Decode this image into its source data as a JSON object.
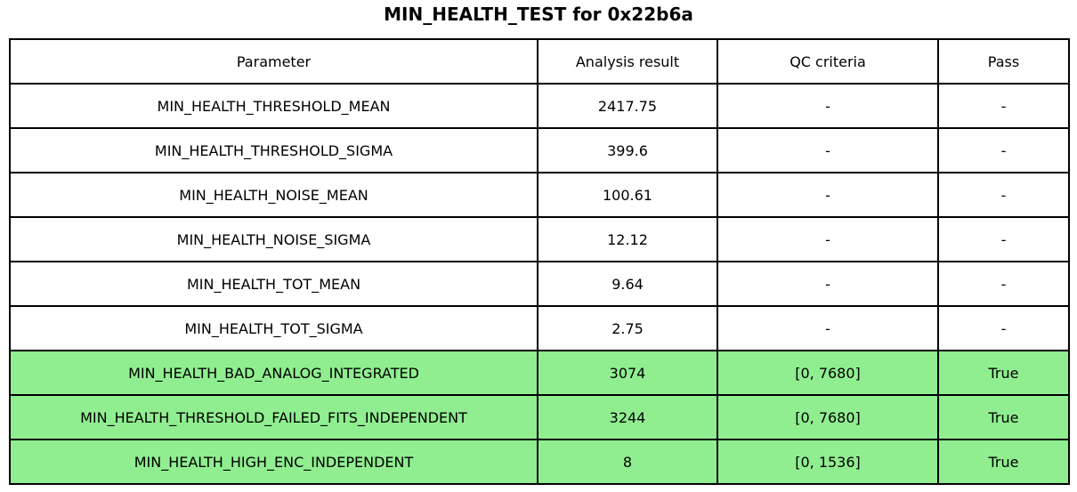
{
  "title": "MIN_HEALTH_TEST for 0x22b6a",
  "colors": {
    "highlight_green": "#90ee90",
    "border": "#000000",
    "background": "#ffffff",
    "text": "#000000"
  },
  "table": {
    "columns": [
      "Parameter",
      "Analysis result",
      "QC criteria",
      "Pass"
    ],
    "rows": [
      {
        "parameter": "MIN_HEALTH_THRESHOLD_MEAN",
        "result": "2417.75",
        "qc": "-",
        "pass": "-",
        "highlight": false
      },
      {
        "parameter": "MIN_HEALTH_THRESHOLD_SIGMA",
        "result": "399.6",
        "qc": "-",
        "pass": "-",
        "highlight": false
      },
      {
        "parameter": "MIN_HEALTH_NOISE_MEAN",
        "result": "100.61",
        "qc": "-",
        "pass": "-",
        "highlight": false
      },
      {
        "parameter": "MIN_HEALTH_NOISE_SIGMA",
        "result": "12.12",
        "qc": "-",
        "pass": "-",
        "highlight": false
      },
      {
        "parameter": "MIN_HEALTH_TOT_MEAN",
        "result": "9.64",
        "qc": "-",
        "pass": "-",
        "highlight": false
      },
      {
        "parameter": "MIN_HEALTH_TOT_SIGMA",
        "result": "2.75",
        "qc": "-",
        "pass": "-",
        "highlight": false
      },
      {
        "parameter": "MIN_HEALTH_BAD_ANALOG_INTEGRATED",
        "result": "3074",
        "qc": "[0, 7680]",
        "pass": "True",
        "highlight": true
      },
      {
        "parameter": "MIN_HEALTH_THRESHOLD_FAILED_FITS_INDEPENDENT",
        "result": "3244",
        "qc": "[0, 7680]",
        "pass": "True",
        "highlight": true
      },
      {
        "parameter": "MIN_HEALTH_HIGH_ENC_INDEPENDENT",
        "result": "8",
        "qc": "[0, 1536]",
        "pass": "True",
        "highlight": true
      }
    ]
  },
  "chart_data": {
    "type": "table",
    "title": "MIN_HEALTH_TEST for 0x22b6a",
    "columns": [
      "Parameter",
      "Analysis result",
      "QC criteria",
      "Pass"
    ],
    "rows": [
      [
        "MIN_HEALTH_THRESHOLD_MEAN",
        "2417.75",
        "-",
        "-"
      ],
      [
        "MIN_HEALTH_THRESHOLD_SIGMA",
        "399.6",
        "-",
        "-"
      ],
      [
        "MIN_HEALTH_NOISE_MEAN",
        "100.61",
        "-",
        "-"
      ],
      [
        "MIN_HEALTH_NOISE_SIGMA",
        "12.12",
        "-",
        "-"
      ],
      [
        "MIN_HEALTH_TOT_MEAN",
        "9.64",
        "-",
        "-"
      ],
      [
        "MIN_HEALTH_TOT_SIGMA",
        "2.75",
        "-",
        "-"
      ],
      [
        "MIN_HEALTH_BAD_ANALOG_INTEGRATED",
        "3074",
        "[0, 7680]",
        "True"
      ],
      [
        "MIN_HEALTH_THRESHOLD_FAILED_FITS_INDEPENDENT",
        "3244",
        "[0, 7680]",
        "True"
      ],
      [
        "MIN_HEALTH_HIGH_ENC_INDEPENDENT",
        "8",
        "[0, 1536]",
        "True"
      ]
    ],
    "highlighted_rows": [
      6,
      7,
      8
    ],
    "row_highlight_color": "#90ee90",
    "layout": "title centered above full-width bordered table; highlighted rows indicate passing QC checks"
  }
}
